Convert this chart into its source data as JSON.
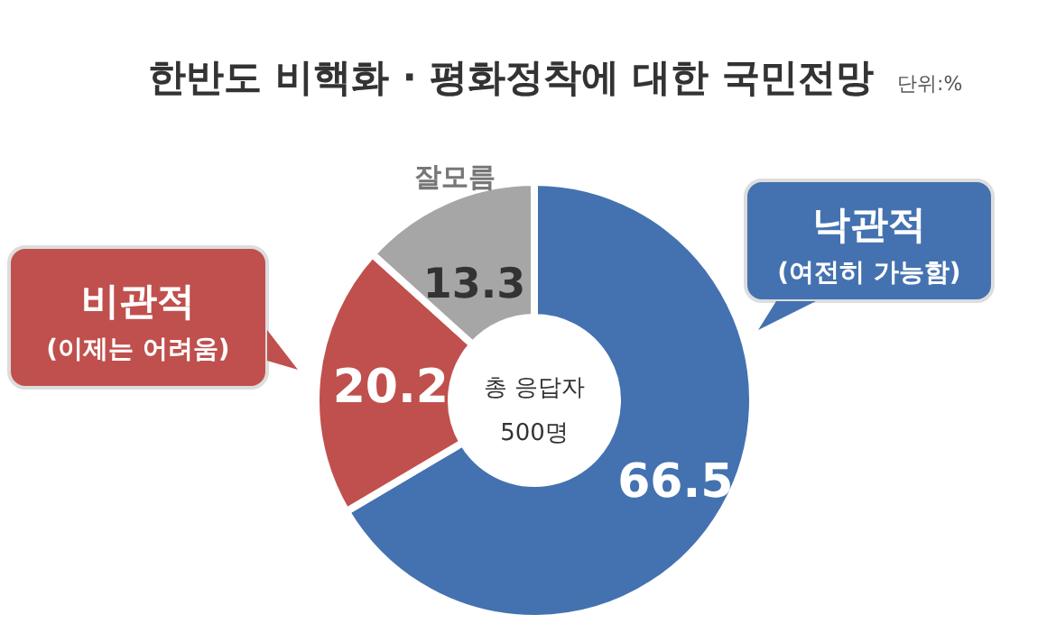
{
  "chart_data": {
    "type": "donut",
    "title": "한반도 비핵화 · 평화정착에 대한 국민전망",
    "subtitle": "단위:%",
    "categories": [
      "낙관적",
      "비관적",
      "잘모름"
    ],
    "values": [
      66.5,
      20.2,
      13.3
    ],
    "colors": [
      "#4472b0",
      "#c0504d",
      "#a6a6a6"
    ],
    "data_labels": true,
    "annotations": [
      "(여전히 가능함)",
      "(이제는 어려움)",
      "총 응답자",
      "500명"
    ]
  }
}
